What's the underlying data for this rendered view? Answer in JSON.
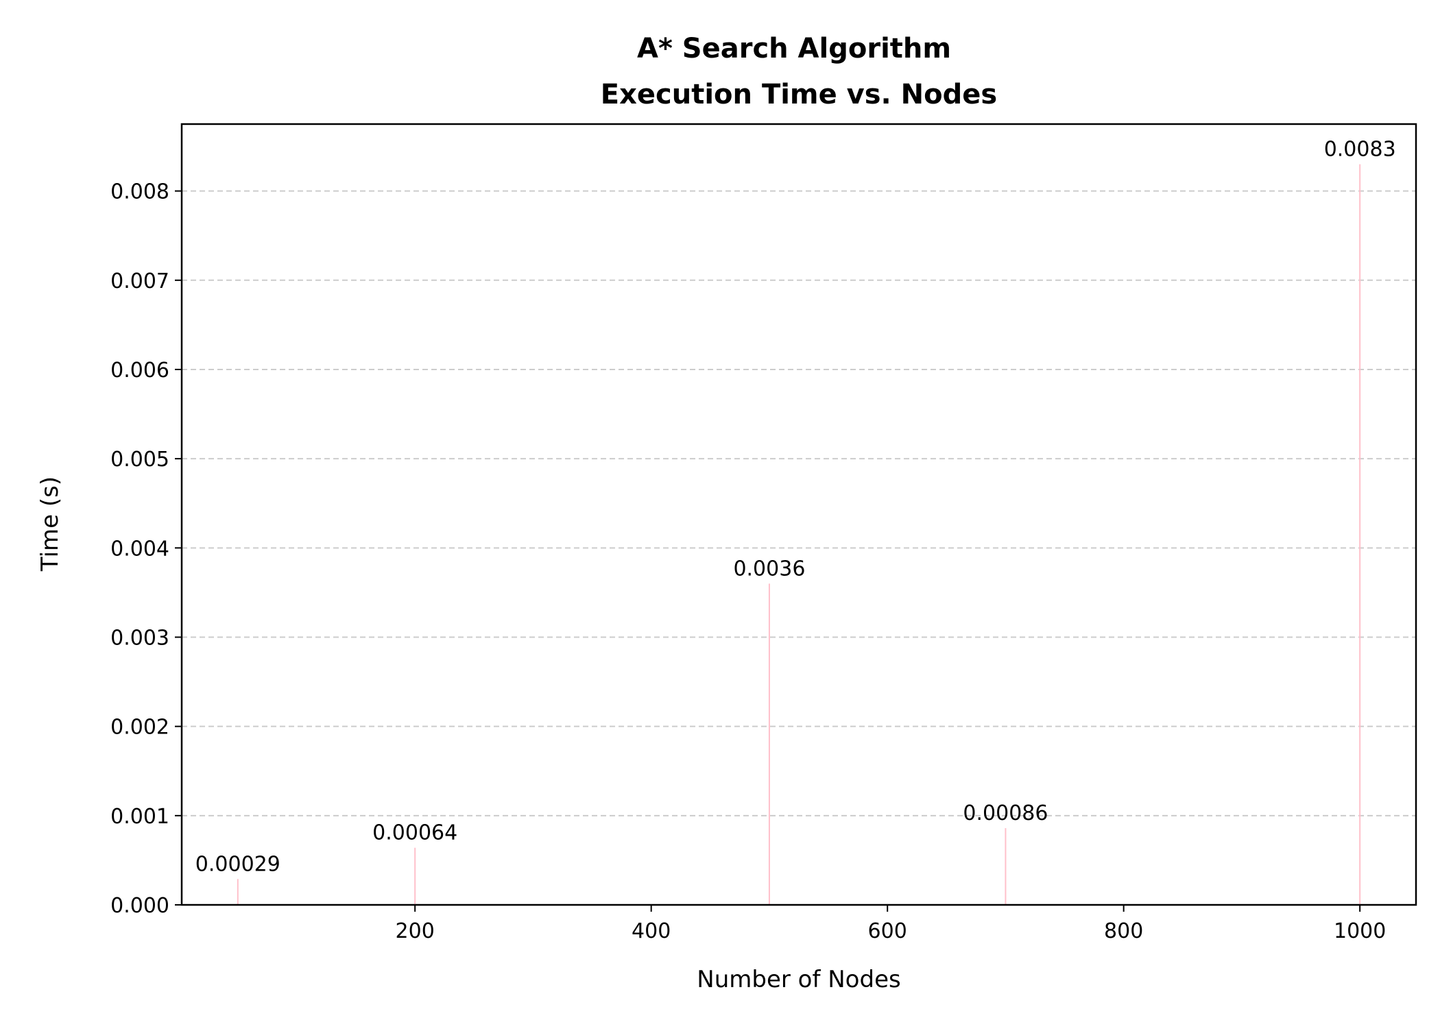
{
  "chart_data": {
    "type": "bar",
    "title_lines": [
      "A* Search Algorithm",
      "Execution Time vs. Nodes"
    ],
    "xlabel": "Number of Nodes",
    "ylabel": "Time (s)",
    "x": [
      50,
      200,
      500,
      700,
      1000
    ],
    "values": [
      0.00029,
      0.00064,
      0.0036,
      0.00086,
      0.0083
    ],
    "data_labels": [
      "0.00029",
      "0.00064",
      "0.0036",
      "0.00086",
      "0.0083"
    ],
    "xlim": [
      2.5,
      1047.5
    ],
    "ylim": [
      0,
      0.00875
    ],
    "x_ticks": [
      200,
      400,
      600,
      800,
      1000
    ],
    "x_tick_labels": [
      "200",
      "400",
      "600",
      "800",
      "1000"
    ],
    "y_ticks": [
      0,
      0.001,
      0.002,
      0.003,
      0.004,
      0.005,
      0.006,
      0.007,
      0.008
    ],
    "y_tick_labels": [
      "0.000",
      "0.001",
      "0.002",
      "0.003",
      "0.004",
      "0.005",
      "0.006",
      "0.007",
      "0.008"
    ],
    "grid": "y-dashed",
    "bar_color": "#FFC0CB",
    "grid_color": "#cccccc",
    "legend": "none"
  }
}
